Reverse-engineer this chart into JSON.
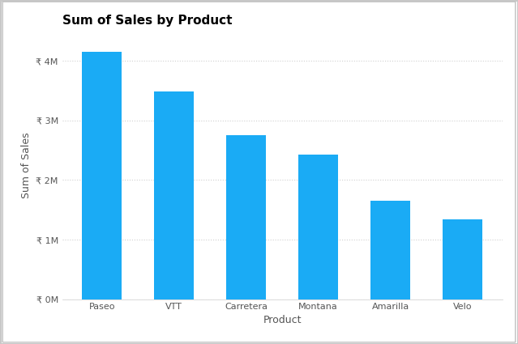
{
  "title": "Sum of Sales by Product",
  "categories": [
    "Paseo",
    "VTT",
    "Carretera",
    "Montana",
    "Amarilla",
    "Velo"
  ],
  "values": [
    4150000,
    3490000,
    2750000,
    2430000,
    1650000,
    1340000
  ],
  "bar_color": "#1aabf5",
  "xlabel": "Product",
  "ylabel": "Sum of Sales",
  "ylim": [
    0,
    4500000
  ],
  "yticks": [
    0,
    1000000,
    2000000,
    3000000,
    4000000
  ],
  "ytick_labels": [
    "₹ 0M",
    "₹ 1M",
    "₹ 2M",
    "₹ 3M",
    "₹ 4M"
  ],
  "background_color": "#ffffff",
  "grid_color": "#d0d0d0",
  "title_fontsize": 11,
  "axis_label_fontsize": 9,
  "tick_fontsize": 8,
  "bar_width": 0.55
}
